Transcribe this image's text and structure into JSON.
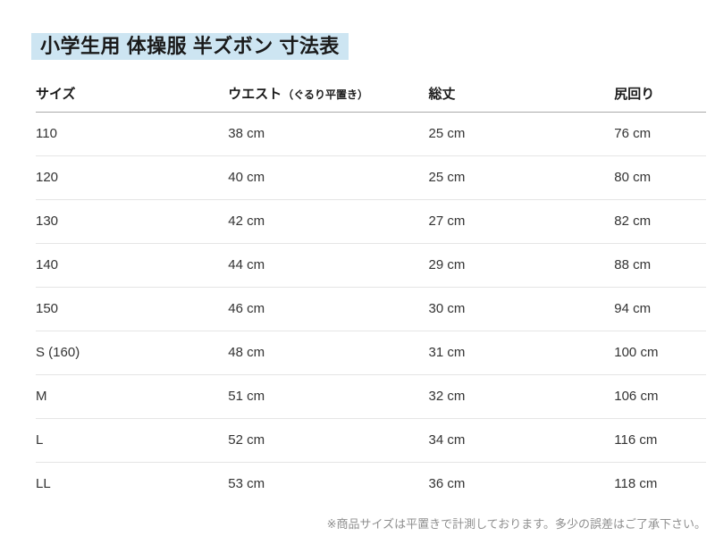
{
  "title": "小学生用 体操服 半ズボン 寸法表",
  "table": {
    "headers": {
      "size": "サイズ",
      "waist": "ウエスト",
      "waist_note": "（ぐるり平置き）",
      "length": "総丈",
      "hip": "尻回り"
    },
    "rows": [
      {
        "size": "110",
        "waist": "38 cm",
        "length": "25 cm",
        "hip": "76 cm"
      },
      {
        "size": "120",
        "waist": "40 cm",
        "length": "25 cm",
        "hip": "80 cm"
      },
      {
        "size": "130",
        "waist": "42 cm",
        "length": "27 cm",
        "hip": "82 cm"
      },
      {
        "size": "140",
        "waist": "44 cm",
        "length": "29 cm",
        "hip": "88 cm"
      },
      {
        "size": "150",
        "waist": "46 cm",
        "length": "30 cm",
        "hip": "94 cm"
      },
      {
        "size": "S (160)",
        "waist": "48 cm",
        "length": "31 cm",
        "hip": "100 cm"
      },
      {
        "size": "M",
        "waist": "51 cm",
        "length": "32 cm",
        "hip": "106 cm"
      },
      {
        "size": "L",
        "waist": "52 cm",
        "length": "34 cm",
        "hip": "116 cm"
      },
      {
        "size": "LL",
        "waist": "53 cm",
        "length": "36 cm",
        "hip": "118 cm"
      }
    ]
  },
  "footnote": "※商品サイズは平置きで計測しております。多少の誤差はご了承下さい。",
  "colors": {
    "title_highlight": "#cde5f2",
    "title_text": "#1a1a1a",
    "header_rule": "#aaaaaa",
    "row_rule": "#e5e5e5",
    "cell_text": "#333333",
    "footnote_text": "#8f8f8f",
    "background": "#ffffff"
  }
}
